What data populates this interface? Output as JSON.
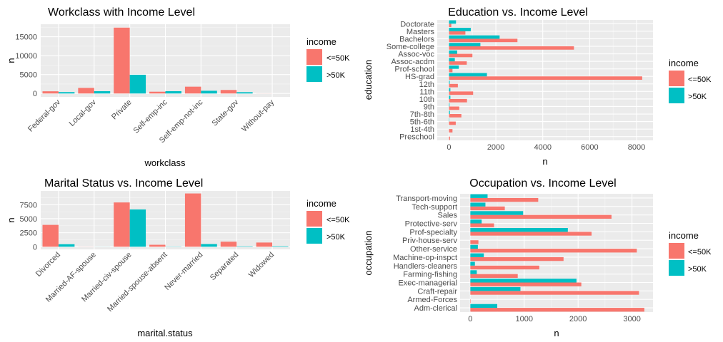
{
  "colors": {
    "low": "#F8766D",
    "high": "#00BFC4",
    "panel": "#EBEBEB",
    "grid": "#FFFFFF",
    "text": "#4D4D4D",
    "title": "#000000"
  },
  "legend": {
    "title": "income",
    "low_label": "<=50K",
    "high_label": ">50K"
  },
  "chart_data": [
    {
      "id": "workclass",
      "type": "bar",
      "orientation": "vertical",
      "title": "Workclass with Income Level",
      "xlabel": "workclass",
      "ylabel": "n",
      "categories": [
        "Federal-gov",
        "Local-gov",
        "Private",
        "Self-emp-inc",
        "Self-emp-not-inc",
        "State-gov",
        "Without-pay"
      ],
      "series": [
        {
          "name": "<=50K",
          "values": [
            580,
            1480,
            17400,
            470,
            1800,
            930,
            15
          ]
        },
        {
          "name": ">50K",
          "values": [
            370,
            610,
            4950,
            610,
            720,
            350,
            0
          ]
        }
      ],
      "ylim": [
        -900,
        18300
      ],
      "ticks": [
        0,
        5000,
        10000,
        15000
      ],
      "tick_labels": [
        "0",
        "5000",
        "10000",
        "15000"
      ],
      "legend": "right"
    },
    {
      "id": "education",
      "type": "bar",
      "orientation": "horizontal",
      "title": "Education vs. Income Level",
      "xlabel": "n",
      "ylabel": "education",
      "categories": [
        "Preschool",
        "1st-4th",
        "5th-6th",
        "7th-8th",
        "9th",
        "10th",
        "11th",
        "12th",
        "HS-grad",
        "Prof-school",
        "Assoc-acdm",
        "Assoc-voc",
        "Some-college",
        "Bachelors",
        "Masters",
        "Doctorate"
      ],
      "series": [
        {
          "name": "<=50K",
          "values": [
            45,
            150,
            290,
            530,
            440,
            770,
            1030,
            380,
            8240,
            150,
            760,
            1000,
            5330,
            2920,
            700,
            100
          ]
        },
        {
          "name": ">50K",
          "values": [
            0,
            5,
            15,
            40,
            25,
            60,
            60,
            33,
            1620,
            420,
            250,
            350,
            1340,
            2160,
            930,
            300
          ]
        }
      ],
      "xlim": [
        -500,
        8700
      ],
      "ticks": [
        0,
        2000,
        4000,
        6000,
        8000
      ],
      "tick_labels": [
        "0",
        "2000",
        "4000",
        "6000",
        "8000"
      ],
      "legend": "right"
    },
    {
      "id": "marital",
      "type": "bar",
      "orientation": "vertical",
      "title": "Marital Status vs. Income Level",
      "xlabel": "marital.status",
      "ylabel": "n",
      "categories": [
        "Divorced",
        "Married-AF-spouse",
        "Married-civ-spouse",
        "Married-spouse-absent",
        "Never-married",
        "Separated",
        "Widowed"
      ],
      "series": [
        {
          "name": "<=50K",
          "values": [
            3900,
            15,
            7900,
            350,
            9500,
            900,
            750
          ]
        },
        {
          "name": ">50K",
          "values": [
            450,
            10,
            6650,
            35,
            480,
            70,
            90
          ]
        }
      ],
      "ylim": [
        -470,
        9950
      ],
      "ticks": [
        0,
        2500,
        5000,
        7500
      ],
      "tick_labels": [
        "0",
        "2500",
        "5000",
        "7500"
      ],
      "legend": "right"
    },
    {
      "id": "occupation",
      "type": "bar",
      "orientation": "horizontal",
      "title": "Occupation vs. Income Level",
      "xlabel": "n",
      "ylabel": "occupation",
      "categories": [
        "Adm-clerical",
        "Armed-Forces",
        "Craft-repair",
        "Exec-managerial",
        "Farming-fishing",
        "Handlers-cleaners",
        "Machine-op-inspct",
        "Other-service",
        "Priv-house-serv",
        "Prof-specialty",
        "Protective-serv",
        "Sales",
        "Tech-support",
        "Transport-moving"
      ],
      "series": [
        {
          "name": "<=50K",
          "values": [
            3230,
            8,
            3130,
            2060,
            880,
            1280,
            1730,
            3090,
            150,
            2250,
            440,
            2620,
            640,
            1260
          ]
        },
        {
          "name": ">50K",
          "values": [
            500,
            1,
            930,
            1970,
            120,
            85,
            250,
            140,
            1,
            1810,
            210,
            980,
            280,
            320
          ]
        }
      ],
      "xlim": [
        -190,
        3390
      ],
      "ticks": [
        0,
        1000,
        2000,
        3000
      ],
      "tick_labels": [
        "0",
        "1000",
        "2000",
        "3000"
      ],
      "legend": "right"
    }
  ]
}
